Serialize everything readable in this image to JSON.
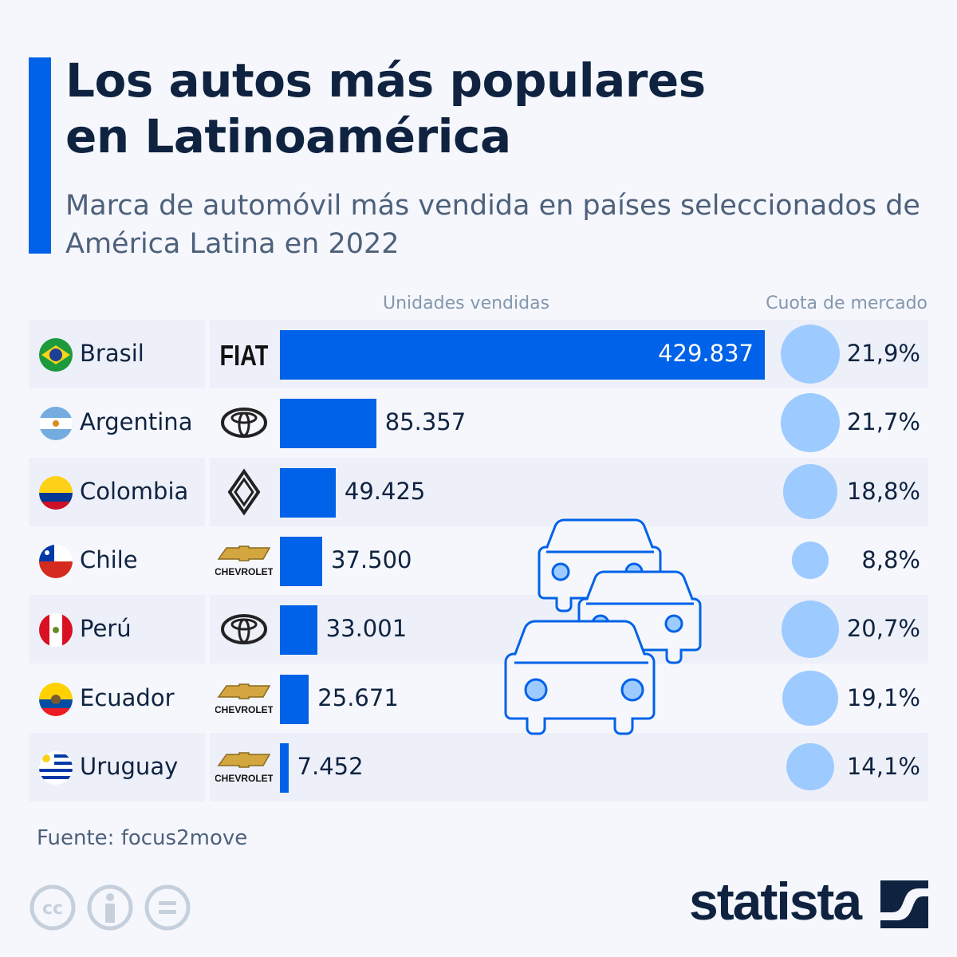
{
  "header": {
    "title_line1": "Los autos más populares",
    "title_line2": "en Latinoamérica",
    "subtitle": "Marca de automóvil más vendida en países seleccionados de América Latina en 2022"
  },
  "colors": {
    "accent": "#0062e8",
    "bar": "#0062e8",
    "circle": "#9ecbff",
    "text": "#0f2341"
  },
  "chart_data": {
    "type": "bar",
    "column_headers": {
      "units": "Unidades vendidas",
      "share": "Cuota de mercado"
    },
    "rows": [
      {
        "country": "Brasil",
        "brand": "FIAT",
        "brand_icon": "fiat-logo",
        "units": 429837,
        "units_label": "429.837",
        "share": 21.9,
        "share_label": "21,9%"
      },
      {
        "country": "Argentina",
        "brand": "Toyota",
        "brand_icon": "toyota-logo",
        "units": 85357,
        "units_label": "85.357",
        "share": 21.7,
        "share_label": "21,7%"
      },
      {
        "country": "Colombia",
        "brand": "Renault",
        "brand_icon": "renault-logo",
        "units": 49425,
        "units_label": "49.425",
        "share": 18.8,
        "share_label": "18,8%"
      },
      {
        "country": "Chile",
        "brand": "CHEVROLET",
        "brand_icon": "chevrolet-logo",
        "units": 37500,
        "units_label": "37.500",
        "share": 8.8,
        "share_label": "8,8%"
      },
      {
        "country": "Perú",
        "brand": "Toyota",
        "brand_icon": "toyota-logo",
        "units": 33001,
        "units_label": "33.001",
        "share": 20.7,
        "share_label": "20,7%"
      },
      {
        "country": "Ecuador",
        "brand": "CHEVROLET",
        "brand_icon": "chevrolet-logo",
        "units": 25671,
        "units_label": "25.671",
        "share": 19.1,
        "share_label": "19,1%"
      },
      {
        "country": "Uruguay",
        "brand": "CHEVROLET",
        "brand_icon": "chevrolet-logo",
        "units": 7452,
        "units_label": "7.452",
        "share": 14.1,
        "share_label": "14,1%"
      }
    ]
  },
  "footer": {
    "source": "Fuente: focus2move",
    "brand": "statista",
    "license_icons": [
      "cc-icon",
      "attribution-icon",
      "no-derivatives-icon"
    ]
  }
}
